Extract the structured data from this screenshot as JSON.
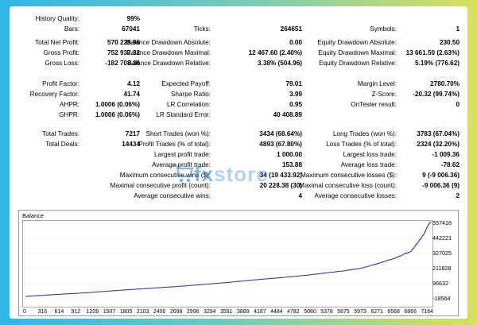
{
  "report": {
    "history_quality": {
      "label": "History Quality:",
      "value": "99%"
    },
    "bars": {
      "label": "Bars:",
      "value": "67041"
    },
    "ticks": {
      "label": "Ticks:",
      "value": "264651"
    },
    "symbols": {
      "label": "Symbols:",
      "value": "1"
    },
    "total_net_profit": {
      "label": "Total Net Profit:",
      "value": "570 228.96"
    },
    "balance_dd_abs": {
      "label": "Balance Drawdown Absolute:",
      "value": "0.00"
    },
    "equity_dd_abs": {
      "label": "Equity Drawdown Absolute:",
      "value": "230.50"
    },
    "gross_profit": {
      "label": "Gross Profit:",
      "value": "752 937.32"
    },
    "balance_dd_max": {
      "label": "Balance Drawdown Maximal:",
      "value": "12 467.60 (2.40%)"
    },
    "equity_dd_max": {
      "label": "Equity Drawdown Maximal:",
      "value": "13 661.50 (2.63%)"
    },
    "gross_loss": {
      "label": "Gross Loss:",
      "value": "-182 708.36"
    },
    "balance_dd_rel": {
      "label": "Balance Drawdown Relative:",
      "value": "3.38% (504.96)"
    },
    "equity_dd_rel": {
      "label": "Equity Drawdown Relative:",
      "value": "5.19% (776.62)"
    },
    "profit_factor": {
      "label": "Profit Factor:",
      "value": "4.12"
    },
    "expected_payoff": {
      "label": "Expected Payoff:",
      "value": "79.01"
    },
    "margin_level": {
      "label": "Margin Level:",
      "value": "2780.70%"
    },
    "recovery_factor": {
      "label": "Recovery Factor:",
      "value": "41.74"
    },
    "sharpe_ratio": {
      "label": "Sharpe Ratio:",
      "value": "3.99"
    },
    "z_score": {
      "label": "Z-Score:",
      "value": "-20.32 (99.74%)"
    },
    "ahpr": {
      "label": "AHPR:",
      "value": "1.0006 (0.06%)"
    },
    "lr_correlation": {
      "label": "LR Correlation:",
      "value": "0.95"
    },
    "ontester": {
      "label": "OnTester result:",
      "value": "0"
    },
    "ghpr": {
      "label": "GHPR:",
      "value": "1.0006 (0.06%)"
    },
    "lr_std_error": {
      "label": "LR Standard Error:",
      "value": "40 408.89"
    },
    "total_trades": {
      "label": "Total Trades:",
      "value": "7217"
    },
    "short_trades": {
      "label": "Short Trades (won %):",
      "value": "3434 (68.64%)"
    },
    "long_trades": {
      "label": "Long Trades (won %):",
      "value": "3783 (67.04%)"
    },
    "total_deals": {
      "label": "Total Deals:",
      "value": "14434"
    },
    "profit_trades": {
      "label": "Profit Trades (% of total):",
      "value": "4893 (67.80%)"
    },
    "loss_trades": {
      "label": "Loss Trades (% of total):",
      "value": "2324 (32.20%)"
    },
    "largest_profit": {
      "label": "Largest profit trade:",
      "value": "1 000.00"
    },
    "largest_loss": {
      "label": "Largest loss trade:",
      "value": "-1 009.36"
    },
    "avg_profit": {
      "label": "Average profit trade:",
      "value": "153.88"
    },
    "avg_loss": {
      "label": "Average loss trade:",
      "value": "-78.62"
    },
    "max_consec_wins": {
      "label": "Maximum consecutive wins ($):",
      "value": "34 (19 433.92)"
    },
    "max_consec_losses": {
      "label": "Maximum consecutive losses ($):",
      "value": "9 (-9 006.36)"
    },
    "maximal_consec_profit": {
      "label": "Maximal consecutive profit (count):",
      "value": "20 228.38 (30)"
    },
    "maximal_consec_loss": {
      "label": "Maximal consecutive loss (count):",
      "value": "-9 006.36 (9)"
    },
    "avg_consec_wins": {
      "label": "Average consecutive wins:",
      "value": "4"
    },
    "avg_consec_losses": {
      "label": "Average consecutive losses:",
      "value": "2"
    }
  },
  "watermark": {
    "part1": "fx",
    "part2": "store"
  },
  "colors": {
    "balance_line": "#3b3b9a",
    "watermark": "#2878c8"
  },
  "chart_data": {
    "type": "line",
    "title": "Balance",
    "x_ticks": [
      "0",
      "316",
      "614",
      "912",
      "1209",
      "1507",
      "1805",
      "2103",
      "2400",
      "2698",
      "2996",
      "3294",
      "3591",
      "3889",
      "4187",
      "4484",
      "4782",
      "5080",
      "5378",
      "5675",
      "5973",
      "6271",
      "6568",
      "6866",
      "7164"
    ],
    "y_ticks": [
      "557418",
      "442221",
      "327025",
      "211828",
      "96632",
      "-18564"
    ],
    "ylim": [
      -18564,
      557418
    ],
    "xlim": [
      0,
      7217
    ],
    "series": [
      {
        "x": [
          0,
          316,
          614,
          912,
          1209,
          1507,
          1805,
          2103,
          2400,
          2698,
          2996,
          3294,
          3591,
          3889,
          4187,
          4484,
          4782,
          5080,
          5378,
          5675,
          5973,
          6271,
          6568,
          6866,
          7000,
          7100,
          7164,
          7217
        ],
        "y": [
          0,
          8000,
          16000,
          23000,
          31000,
          41000,
          50000,
          58000,
          67000,
          75000,
          85000,
          95000,
          106000,
          118000,
          130000,
          140000,
          152000,
          165000,
          180000,
          195000,
          214000,
          250000,
          290000,
          345000,
          420000,
          480000,
          540000,
          570229
        ]
      }
    ]
  }
}
